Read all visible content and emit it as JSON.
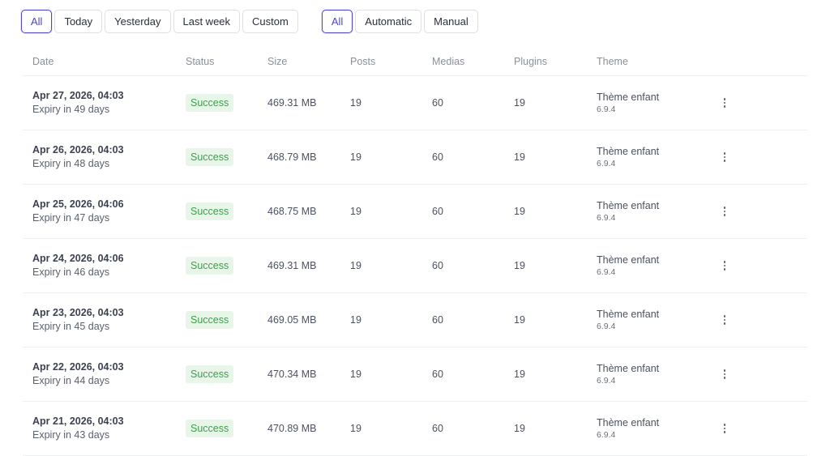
{
  "filters": {
    "date": [
      {
        "label": "All",
        "active": true
      },
      {
        "label": "Today",
        "active": false
      },
      {
        "label": "Yesterday",
        "active": false
      },
      {
        "label": "Last week",
        "active": false
      },
      {
        "label": "Custom",
        "active": false
      }
    ],
    "type": [
      {
        "label": "All",
        "active": true
      },
      {
        "label": "Automatic",
        "active": false
      },
      {
        "label": "Manual",
        "active": false
      }
    ]
  },
  "table": {
    "columns": [
      "Date",
      "Status",
      "Size",
      "Posts",
      "Medias",
      "Plugins",
      "Theme"
    ],
    "rows": [
      {
        "date": "Apr 27, 2026, 04:03",
        "expiry": "Expiry in 49 days",
        "status": "Success",
        "size": "469.31 MB",
        "posts": "19",
        "medias": "60",
        "plugins": "19",
        "theme": "Thème enfant",
        "theme_version": "6.9.4"
      },
      {
        "date": "Apr 26, 2026, 04:03",
        "expiry": "Expiry in 48 days",
        "status": "Success",
        "size": "468.79 MB",
        "posts": "19",
        "medias": "60",
        "plugins": "19",
        "theme": "Thème enfant",
        "theme_version": "6.9.4"
      },
      {
        "date": "Apr 25, 2026, 04:06",
        "expiry": "Expiry in 47 days",
        "status": "Success",
        "size": "468.75 MB",
        "posts": "19",
        "medias": "60",
        "plugins": "19",
        "theme": "Thème enfant",
        "theme_version": "6.9.4"
      },
      {
        "date": "Apr 24, 2026, 04:06",
        "expiry": "Expiry in 46 days",
        "status": "Success",
        "size": "469.31 MB",
        "posts": "19",
        "medias": "60",
        "plugins": "19",
        "theme": "Thème enfant",
        "theme_version": "6.9.4"
      },
      {
        "date": "Apr 23, 2026, 04:03",
        "expiry": "Expiry in 45 days",
        "status": "Success",
        "size": "469.05 MB",
        "posts": "19",
        "medias": "60",
        "plugins": "19",
        "theme": "Thème enfant",
        "theme_version": "6.9.4"
      },
      {
        "date": "Apr 22, 2026, 04:03",
        "expiry": "Expiry in 44 days",
        "status": "Success",
        "size": "470.34 MB",
        "posts": "19",
        "medias": "60",
        "plugins": "19",
        "theme": "Thème enfant",
        "theme_version": "6.9.4"
      },
      {
        "date": "Apr 21, 2026, 04:03",
        "expiry": "Expiry in 43 days",
        "status": "Success",
        "size": "470.89 MB",
        "posts": "19",
        "medias": "60",
        "plugins": "19",
        "theme": "Thème enfant",
        "theme_version": "6.9.4"
      }
    ]
  },
  "icons": {
    "row_menu": "more-vertical-icon"
  },
  "colors": {
    "accent": "#4f46c8",
    "success_text": "#3f9d4c",
    "success_bg": "#e8f6ea"
  }
}
